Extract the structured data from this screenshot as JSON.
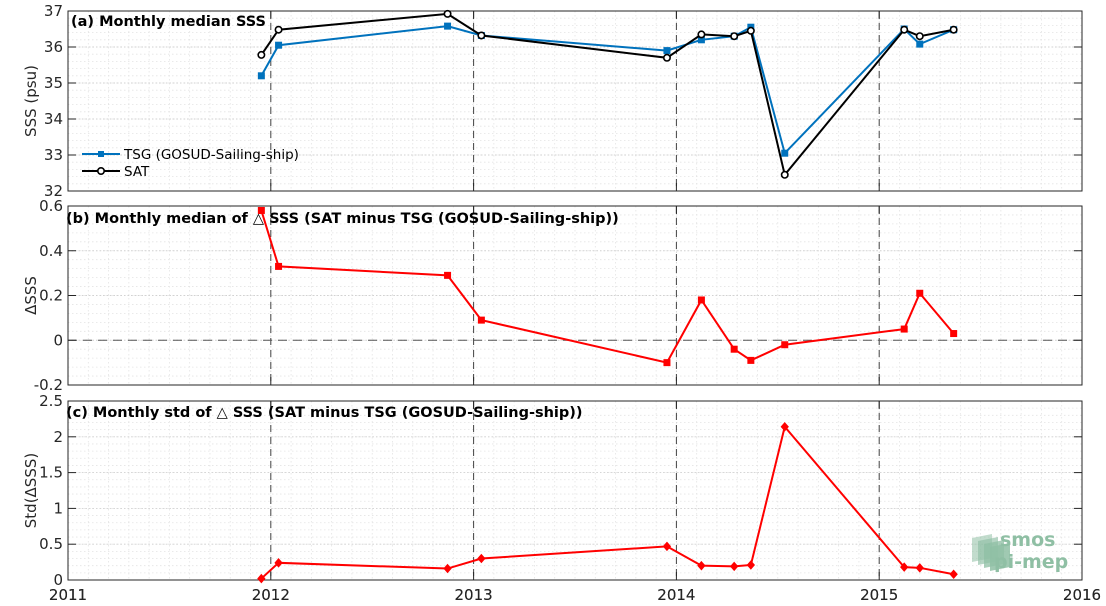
{
  "chart_data": [
    {
      "type": "line",
      "title": "(a) Monthly median SSS",
      "ylabel": "SSS (psu)",
      "ylim": [
        32,
        37
      ],
      "yticks": [
        32,
        33,
        34,
        35,
        36,
        37
      ],
      "xlim": [
        "2011-01-01",
        "2016-01-01"
      ],
      "xticks": [
        "2011",
        "2012",
        "2013",
        "2014",
        "2015",
        "2016"
      ],
      "x_dashed_lines": [
        "2012-01-01",
        "2013-01-01",
        "2014-01-01",
        "2015-01-01"
      ],
      "grid": true,
      "legend_position": "lower-left",
      "series": [
        {
          "name": "TSG (GOSUD-Sailing-ship)",
          "color": "#0072bd",
          "marker": "square-filled",
          "x": [
            "2011-12-15",
            "2012-01-15",
            "2012-11-15",
            "2013-01-15",
            "2013-12-15",
            "2014-02-15",
            "2014-04-15",
            "2014-05-15",
            "2014-07-15",
            "2015-02-15",
            "2015-03-15",
            "2015-05-15"
          ],
          "y": [
            35.2,
            36.05,
            36.58,
            36.32,
            35.9,
            36.2,
            36.3,
            36.55,
            33.05,
            36.5,
            36.08,
            36.48
          ]
        },
        {
          "name": "SAT",
          "color": "#000000",
          "marker": "circle-open",
          "x": [
            "2011-12-15",
            "2012-01-15",
            "2012-11-15",
            "2013-01-15",
            "2013-12-15",
            "2014-02-15",
            "2014-04-15",
            "2014-05-15",
            "2014-07-15",
            "2015-02-15",
            "2015-03-15",
            "2015-05-15"
          ],
          "y": [
            35.78,
            36.48,
            36.92,
            36.32,
            35.7,
            36.35,
            36.3,
            36.45,
            32.45,
            36.48,
            36.3,
            36.48
          ]
        }
      ]
    },
    {
      "type": "line",
      "title": "(b) Monthly median of △ SSS (SAT minus TSG (GOSUD-Sailing-ship))",
      "ylabel": "ΔSSS",
      "ylim": [
        -0.2,
        0.6
      ],
      "yticks": [
        -0.2,
        0,
        0.2,
        0.4,
        0.6
      ],
      "ytick_labels": [
        "-0.2",
        "0",
        "0.2",
        "0.4",
        "0.6"
      ],
      "xlim": [
        "2011-01-01",
        "2016-01-01"
      ],
      "x_dashed_lines": [
        "2012-01-01",
        "2013-01-01",
        "2014-01-01",
        "2015-01-01"
      ],
      "y_dashed_lines": [
        0
      ],
      "grid": true,
      "series": [
        {
          "color": "#ff0000",
          "marker": "square-filled",
          "x": [
            "2011-12-15",
            "2012-01-15",
            "2012-11-15",
            "2013-01-15",
            "2013-12-15",
            "2014-02-15",
            "2014-04-15",
            "2014-05-15",
            "2014-07-15",
            "2015-02-15",
            "2015-03-15",
            "2015-05-15"
          ],
          "y": [
            0.58,
            0.33,
            0.29,
            0.09,
            -0.1,
            0.18,
            -0.04,
            -0.09,
            -0.02,
            0.05,
            0.21,
            0.03
          ]
        }
      ]
    },
    {
      "type": "line",
      "title": "(c) Monthly std of △ SSS (SAT minus TSG (GOSUD-Sailing-ship))",
      "ylabel": "Std(ΔSSS)",
      "ylim": [
        0,
        2.5
      ],
      "yticks": [
        0,
        0.5,
        1,
        1.5,
        2,
        2.5
      ],
      "ytick_labels": [
        "0",
        "0.5",
        "1",
        "1.5",
        "2",
        "2.5"
      ],
      "xlim": [
        "2011-01-01",
        "2016-01-01"
      ],
      "xticks": [
        "2011",
        "2012",
        "2013",
        "2014",
        "2015",
        "2016"
      ],
      "x_dashed_lines": [
        "2012-01-01",
        "2013-01-01",
        "2014-01-01",
        "2015-01-01"
      ],
      "grid": true,
      "series": [
        {
          "color": "#ff0000",
          "marker": "diamond-filled",
          "x": [
            "2011-12-15",
            "2012-01-15",
            "2012-11-15",
            "2013-01-15",
            "2013-12-15",
            "2014-02-15",
            "2014-04-15",
            "2014-05-15",
            "2014-07-15",
            "2015-02-15",
            "2015-03-15",
            "2015-05-15"
          ],
          "y": [
            0.02,
            0.24,
            0.16,
            0.3,
            0.47,
            0.2,
            0.19,
            0.21,
            2.14,
            0.18,
            0.17,
            0.08
          ]
        }
      ]
    }
  ],
  "logo": {
    "line1": "smos",
    "line2": "pi-mep",
    "color": "#8fbfa4"
  }
}
